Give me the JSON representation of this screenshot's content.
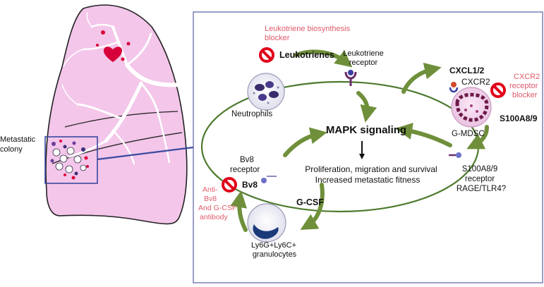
{
  "lung": {
    "label_line1": "Metastatic",
    "label_line2": "colony"
  },
  "blocker_leukotriene": {
    "line1": "Leukotriene biosynthesis",
    "line2": "blocker"
  },
  "leukotrienes": "Leukotrienes",
  "leukotriene_receptor": {
    "line1": "Leukotriene",
    "line2": "receptor"
  },
  "neutrophils": "Neutrophils",
  "cxcl": "CXCL1/2",
  "cxcr2": "CXCR2",
  "blocker_cxcr2": {
    "line1": "CXCR2",
    "line2": "receptor",
    "line3": "blocker"
  },
  "gmdsc": "G-MDSC",
  "s100a89": "S100A8/9",
  "s100_receptor": {
    "line1": "S100A8/9",
    "line2": "receptor",
    "line3": "RAGE/TLR4?"
  },
  "center": {
    "title": "MAPK signaling",
    "line1": "Proliferation, migration and survival",
    "line2": "Increased metastatic fitness"
  },
  "bv8_receptor": {
    "line1": "Bv8",
    "line2": "receptor"
  },
  "bv8": "Bv8",
  "gcsf": "G-CSF",
  "anti_bv8": {
    "line1": "Anti-",
    "line2": "Bv8",
    "line3": "And G-CSF",
    "line4": "antibody"
  },
  "granulocytes": {
    "line1": "Ly6G+Ly6C+",
    "line2": "granulocytes"
  },
  "colors": {
    "lung_fill": "#f3c6ea",
    "lung_outline": "#222222",
    "panel_border": "#5b5fa6",
    "ellipse": "#4e7a2e",
    "arrow_green": "#6f8f3a",
    "blocker_red": "#e0001a",
    "blocker_text": "#e05a6a",
    "callout": "#3a4a9e"
  }
}
